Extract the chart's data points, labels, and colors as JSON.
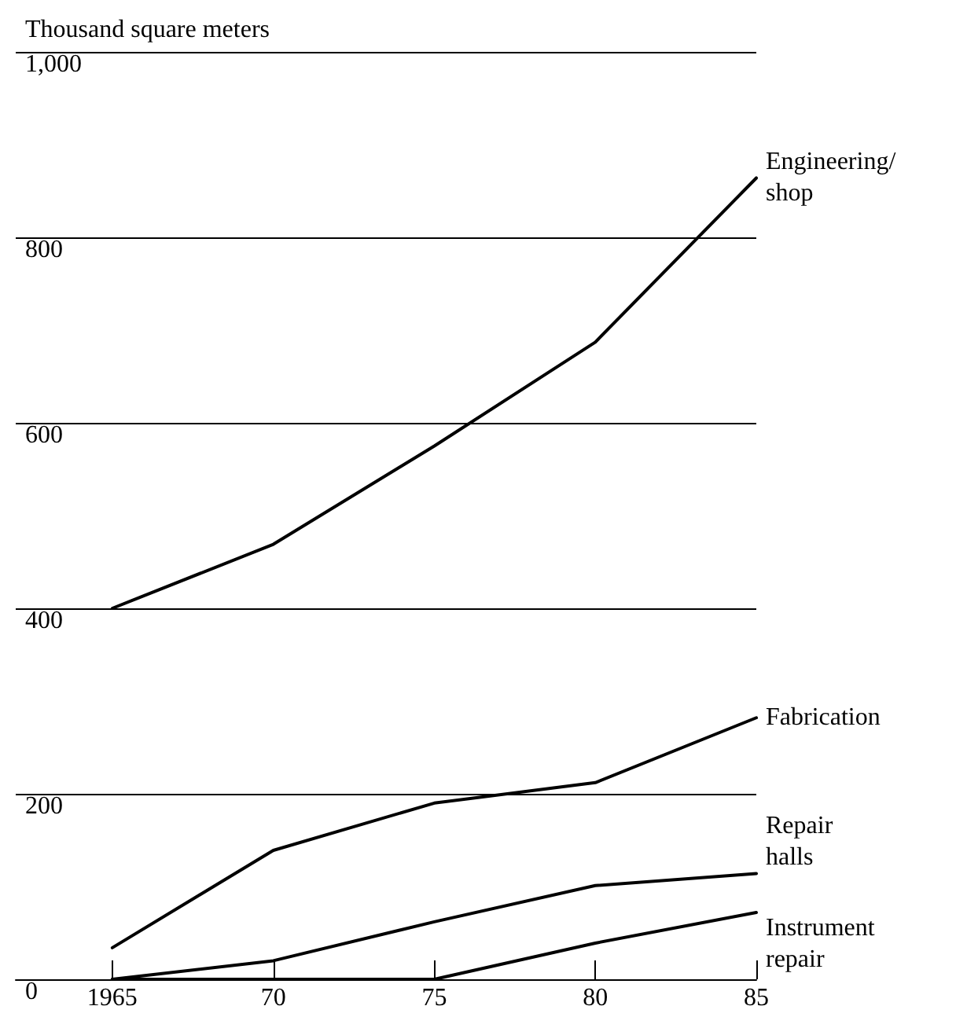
{
  "chart_data": {
    "type": "line",
    "ylabel": "Thousand square meters",
    "x": [
      1965,
      1970,
      1975,
      1980,
      1985
    ],
    "xlim": [
      1962,
      1985
    ],
    "xticks": [
      {
        "value": 1965,
        "label": "1965"
      },
      {
        "value": 1970,
        "label": "70"
      },
      {
        "value": 1975,
        "label": "75"
      },
      {
        "value": 1980,
        "label": "80"
      },
      {
        "value": 1985,
        "label": "85"
      }
    ],
    "ylim": [
      0,
      1000
    ],
    "yticks": [
      0,
      200,
      400,
      600,
      800,
      {
        "value": 1000,
        "label": "1,000"
      }
    ],
    "grid": "y",
    "legend": false,
    "marker": "none",
    "line_style": "solid",
    "series": [
      {
        "name": "Engineering/shop",
        "color": "#000000",
        "values": [
          400,
          469,
          575,
          687,
          864
        ]
      },
      {
        "name": "Fabrication",
        "color": "#000000",
        "values": [
          34,
          139,
          190,
          212,
          282
        ]
      },
      {
        "name": "Repair halls",
        "color": "#000000",
        "values": [
          0,
          20,
          62,
          101,
          114
        ]
      },
      {
        "name": "Instrument repair",
        "color": "#000000",
        "values": [
          0,
          0,
          0,
          39,
          72
        ]
      }
    ]
  }
}
